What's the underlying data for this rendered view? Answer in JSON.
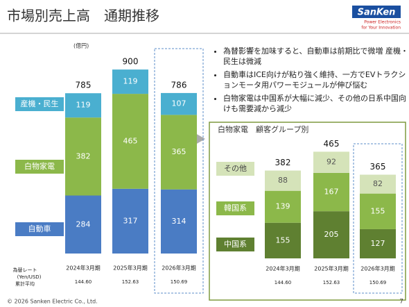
{
  "header": {
    "title": "市場別売上高　通期推移",
    "logo": "SanKen",
    "logo_tagline": [
      "Power Electronics",
      "for Your Innovation"
    ]
  },
  "bullets": [
    "為替影響を加味すると、自動車は前期比で微増 産機・民生は微減",
    "自動車はICE向けが粘り強く維持、一方でEVトラクションモータ用パワーモジュールが伸び悩む",
    "白物家電は中国系が大幅に減少、その他の日系中国向けも需要減から減少"
  ],
  "footer": {
    "copyright": "© 2026  Sanken Electric Co., Ltd.",
    "page": "7"
  },
  "chart_data": [
    {
      "type": "stacked_bar",
      "unit": "(億円)",
      "categories": [
        "2024年3月期",
        "2025年3月期",
        "2026年3月期"
      ],
      "series": [
        {
          "name": "自動車",
          "color": "#4a7cc4",
          "values": [
            284,
            317,
            314
          ]
        },
        {
          "name": "白物家電",
          "color": "#8cb84a",
          "values": [
            382,
            465,
            365
          ]
        },
        {
          "name": "産機・民生",
          "color": "#4aafd0",
          "values": [
            119,
            119,
            107
          ]
        }
      ],
      "totals": [
        785,
        900,
        786
      ],
      "rate_label": [
        "為替レート",
        "(Yen/USD)",
        "累計平均"
      ],
      "exchange_rates": [
        "144.60",
        "152.63",
        "150.69"
      ]
    },
    {
      "type": "stacked_bar",
      "title": "白物家電　顧客グループ別",
      "categories": [
        "2024年3月期",
        "2025年3月期",
        "2026年3月期"
      ],
      "series": [
        {
          "name": "中国系",
          "color": "#5f8031",
          "values": [
            155,
            205,
            127
          ]
        },
        {
          "name": "韓国系",
          "color": "#8cb84a",
          "values": [
            139,
            167,
            155
          ]
        },
        {
          "name": "その他",
          "color": "#d5e3b9",
          "values": [
            88,
            92,
            82
          ]
        }
      ],
      "totals": [
        382,
        465,
        365
      ],
      "exchange_rates": [
        "144.60",
        "152.63",
        "150.69"
      ]
    }
  ]
}
